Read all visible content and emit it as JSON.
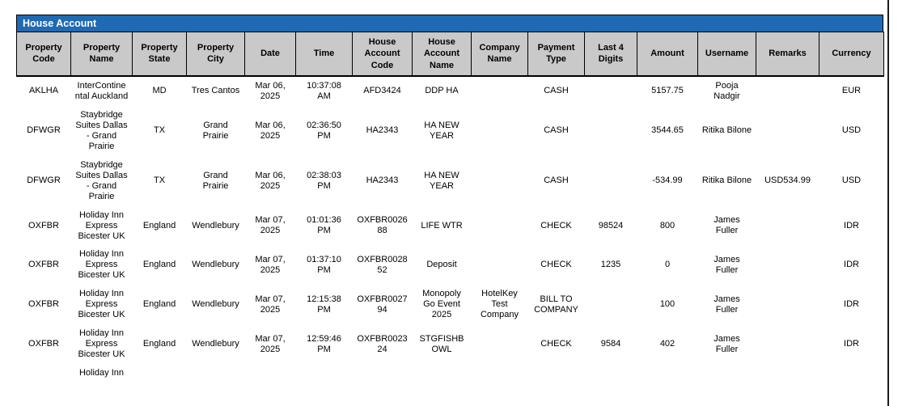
{
  "title": "House Account",
  "colors": {
    "title_bar_bg": "#1F6AB2",
    "title_text": "#FFFFFF",
    "header_bg": "#C9C9C9",
    "border": "#000000"
  },
  "table": {
    "columns": [
      {
        "key": "property_code",
        "label": "Property Code"
      },
      {
        "key": "property_name",
        "label": "Property Name"
      },
      {
        "key": "property_state",
        "label": "Property State"
      },
      {
        "key": "property_city",
        "label": "Property City"
      },
      {
        "key": "date",
        "label": "Date"
      },
      {
        "key": "time",
        "label": "Time"
      },
      {
        "key": "house_account_code",
        "label": "House Account Code"
      },
      {
        "key": "house_account_name",
        "label": "House Account Name"
      },
      {
        "key": "company_name",
        "label": "Company Name"
      },
      {
        "key": "payment_type",
        "label": "Payment Type"
      },
      {
        "key": "last_4_digits",
        "label": "Last 4 Digits"
      },
      {
        "key": "amount",
        "label": "Amount"
      },
      {
        "key": "username",
        "label": "Username"
      },
      {
        "key": "remarks",
        "label": "Remarks"
      },
      {
        "key": "currency",
        "label": "Currency"
      }
    ],
    "rows": [
      {
        "property_code": "AKLHA",
        "property_name": "InterContinental Auckland",
        "property_state": "MD",
        "property_city": "Tres Cantos",
        "date": "Mar 06, 2025",
        "time": "10:37:08 AM",
        "house_account_code": "AFD3424",
        "house_account_name": "DDP HA",
        "company_name": "",
        "payment_type": "CASH",
        "last_4_digits": "",
        "amount": "5157.75",
        "username": "Pooja Nadgir",
        "remarks": "",
        "currency": "EUR"
      },
      {
        "property_code": "DFWGR",
        "property_name": "Staybridge Suites Dallas - Grand Prairie",
        "property_state": "TX",
        "property_city": "Grand Prairie",
        "date": "Mar 06, 2025",
        "time": "02:36:50 PM",
        "house_account_code": "HA2343",
        "house_account_name": "HA NEW YEAR",
        "company_name": "",
        "payment_type": "CASH",
        "last_4_digits": "",
        "amount": "3544.65",
        "username": "Ritika Bilone",
        "remarks": "",
        "currency": "USD"
      },
      {
        "property_code": "DFWGR",
        "property_name": "Staybridge Suites Dallas - Grand Prairie",
        "property_state": "TX",
        "property_city": "Grand Prairie",
        "date": "Mar 06, 2025",
        "time": "02:38:03 PM",
        "house_account_code": "HA2343",
        "house_account_name": "HA NEW YEAR",
        "company_name": "",
        "payment_type": "CASH",
        "last_4_digits": "",
        "amount": "-534.99",
        "username": "Ritika Bilone",
        "remarks": "USD534.99",
        "currency": "USD"
      },
      {
        "property_code": "OXFBR",
        "property_name": "Holiday Inn Express Bicester UK",
        "property_state": "England",
        "property_city": "Wendlebury",
        "date": "Mar 07, 2025",
        "time": "01:01:36 PM",
        "house_account_code": "OXFBR002688",
        "house_account_name": "LIFE WTR",
        "company_name": "",
        "payment_type": "CHECK",
        "last_4_digits": "98524",
        "amount": "800",
        "username": "James Fuller",
        "remarks": "",
        "currency": "IDR"
      },
      {
        "property_code": "OXFBR",
        "property_name": "Holiday Inn Express Bicester UK",
        "property_state": "England",
        "property_city": "Wendlebury",
        "date": "Mar 07, 2025",
        "time": "01:37:10 PM",
        "house_account_code": "OXFBR002852",
        "house_account_name": "Deposit",
        "company_name": "",
        "payment_type": "CHECK",
        "last_4_digits": "1235",
        "amount": "0",
        "username": "James Fuller",
        "remarks": "",
        "currency": "IDR"
      },
      {
        "property_code": "OXFBR",
        "property_name": "Holiday Inn Express Bicester UK",
        "property_state": "England",
        "property_city": "Wendlebury",
        "date": "Mar 07, 2025",
        "time": "12:15:38 PM",
        "house_account_code": "OXFBR002794",
        "house_account_name": "Monopoly Go Event 2025",
        "company_name": "HotelKey Test Company",
        "payment_type": "BILL TO COMPANY",
        "last_4_digits": "",
        "amount": "100",
        "username": "James Fuller",
        "remarks": "",
        "currency": "IDR"
      },
      {
        "property_code": "OXFBR",
        "property_name": "Holiday Inn Express Bicester UK",
        "property_state": "England",
        "property_city": "Wendlebury",
        "date": "Mar 07, 2025",
        "time": "12:59:46 PM",
        "house_account_code": "OXFBR002324",
        "house_account_name": "STGFISHB OWL",
        "company_name": "",
        "payment_type": "CHECK",
        "last_4_digits": "9584",
        "amount": "402",
        "username": "James Fuller",
        "remarks": "",
        "currency": "IDR"
      },
      {
        "property_code": "",
        "property_name": "Holiday Inn",
        "property_state": "",
        "property_city": "",
        "date": "",
        "time": "",
        "house_account_code": "",
        "house_account_name": "",
        "company_name": "",
        "payment_type": "",
        "last_4_digits": "",
        "amount": "",
        "username": "",
        "remarks": "",
        "currency": ""
      }
    ]
  }
}
